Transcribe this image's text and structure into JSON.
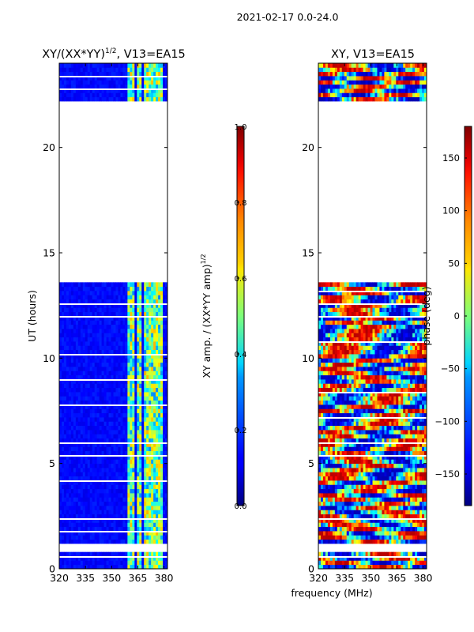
{
  "suptitle": "2021-02-17 0.0-24.0",
  "xlabel_shared": "frequency (MHz)",
  "chart_data": [
    {
      "type": "heatmap",
      "title_main": "XY/(XX*YY)",
      "title_sup": "1/2",
      "title_rest": ", V13=EA15",
      "xlabel": "",
      "ylabel": "UT (hours)",
      "xlim": [
        320,
        382
      ],
      "ylim": [
        0,
        24
      ],
      "xticks": [
        320,
        335,
        350,
        365,
        380
      ],
      "yticks": [
        0,
        5,
        10,
        15,
        20
      ],
      "colormap": "jet",
      "colorbar": {
        "label_main": "XY amp. / (XX*YY amp)",
        "label_sup": "1/2",
        "range": [
          0.0,
          1.0
        ],
        "ticks": [
          0.0,
          0.2,
          0.4,
          0.6,
          0.8,
          1.0
        ],
        "tick_labels": [
          "0.0",
          "0.2",
          "0.4",
          "0.6",
          "0.8",
          "1.0"
        ]
      },
      "data_gaps_hours": [
        [
          13.6,
          22.3
        ],
        [
          0.75,
          1.3
        ]
      ],
      "bright_channels_MHz": [
        [
          359,
          363
        ],
        [
          365,
          367
        ],
        [
          369,
          372
        ],
        [
          373,
          376
        ],
        [
          377,
          379
        ]
      ],
      "typical_value": 0.1
    },
    {
      "type": "heatmap",
      "title": "XY, V13=EA15",
      "xlabel": "",
      "ylabel": "",
      "xlim": [
        320,
        382
      ],
      "ylim": [
        0,
        24
      ],
      "xticks": [
        320,
        335,
        350,
        365,
        380
      ],
      "yticks": [
        0,
        5,
        10,
        15,
        20
      ],
      "colormap": "jet",
      "colorbar": {
        "label": "phase (deg)",
        "range": [
          -180,
          180
        ],
        "ticks": [
          -150,
          -100,
          -50,
          0,
          50,
          100,
          150
        ],
        "tick_labels": [
          "−150",
          "−100",
          "−50",
          "0",
          "50",
          "100",
          "150"
        ]
      },
      "data_gaps_hours": [
        [
          13.6,
          22.3
        ],
        [
          0.75,
          1.3
        ]
      ]
    }
  ]
}
